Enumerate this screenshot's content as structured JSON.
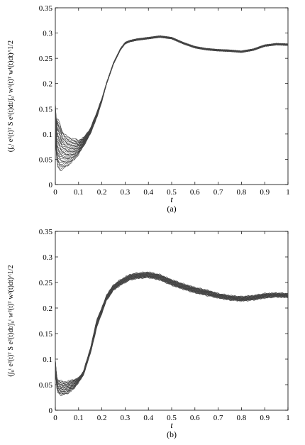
{
  "chart_data": [
    {
      "type": "line",
      "panel_label": "(a)",
      "xlabel": "t",
      "ylabel": "(∫₀ᵗ e¹(t)ᵀ S e¹(t)dt/∫₀ᵗ w¹(t)ᵀ w¹(t)dt)^1/2",
      "xlim": [
        0,
        1
      ],
      "ylim": [
        0,
        0.35
      ],
      "xticks": [
        "0",
        "0.1",
        "0.2",
        "0.3",
        "0.4",
        "0.5",
        "0.6",
        "0.7",
        "0.8",
        "0.9",
        "1"
      ],
      "yticks": [
        "0",
        "0.05",
        "0.1",
        "0.15",
        "0.2",
        "0.25",
        "0.3",
        "0.35"
      ],
      "grid": false,
      "series_count": 30,
      "x": [
        0,
        0.005,
        0.01,
        0.02,
        0.03,
        0.05,
        0.08,
        0.1,
        0.12,
        0.15,
        0.18,
        0.2,
        0.22,
        0.25,
        0.28,
        0.3,
        0.32,
        0.35,
        0.4,
        0.45,
        0.5,
        0.55,
        0.6,
        0.65,
        0.7,
        0.75,
        0.8,
        0.85,
        0.9,
        0.95,
        1.0
      ],
      "upper_envelope": [
        0.165,
        0.12,
        0.13,
        0.12,
        0.105,
        0.095,
        0.09,
        0.088,
        0.092,
        0.11,
        0.145,
        0.17,
        0.2,
        0.24,
        0.268,
        0.28,
        0.284,
        0.287,
        0.29,
        0.293,
        0.29,
        0.28,
        0.272,
        0.268,
        0.266,
        0.265,
        0.263,
        0.267,
        0.275,
        0.278,
        0.277
      ],
      "lower_envelope": [
        0.1,
        0.05,
        0.035,
        0.028,
        0.03,
        0.036,
        0.048,
        0.06,
        0.075,
        0.1,
        0.135,
        0.165,
        0.2,
        0.24,
        0.268,
        0.28,
        0.284,
        0.287,
        0.29,
        0.293,
        0.29,
        0.28,
        0.272,
        0.268,
        0.266,
        0.265,
        0.263,
        0.267,
        0.275,
        0.278,
        0.277
      ]
    },
    {
      "type": "line",
      "panel_label": "(b)",
      "xlabel": "t",
      "ylabel": "(∫₀ᵗ e²(t)ᵀ S e²(t)dt/∫₀ᵗ w²(t)ᵀ w²(t)dt)^1/2",
      "xlim": [
        0,
        1
      ],
      "ylim": [
        0,
        0.35
      ],
      "xticks": [
        "0",
        "0.1",
        "0.2",
        "0.3",
        "0.4",
        "0.5",
        "0.6",
        "0.7",
        "0.8",
        "0.9",
        "1"
      ],
      "yticks": [
        "0",
        "0.05",
        "0.1",
        "0.15",
        "0.2",
        "0.25",
        "0.3",
        "0.35"
      ],
      "grid": false,
      "series_count": 25,
      "x": [
        0,
        0.005,
        0.01,
        0.02,
        0.03,
        0.05,
        0.08,
        0.1,
        0.12,
        0.15,
        0.18,
        0.2,
        0.22,
        0.25,
        0.28,
        0.3,
        0.32,
        0.35,
        0.4,
        0.45,
        0.5,
        0.55,
        0.6,
        0.65,
        0.7,
        0.75,
        0.8,
        0.85,
        0.9,
        0.95,
        1.0
      ],
      "upper_envelope": [
        0.1,
        0.07,
        0.06,
        0.058,
        0.056,
        0.056,
        0.06,
        0.063,
        0.075,
        0.12,
        0.18,
        0.2,
        0.225,
        0.245,
        0.255,
        0.26,
        0.265,
        0.268,
        0.27,
        0.265,
        0.255,
        0.247,
        0.24,
        0.235,
        0.228,
        0.224,
        0.222,
        0.224,
        0.228,
        0.229,
        0.228
      ],
      "lower_envelope": [
        0.09,
        0.045,
        0.035,
        0.03,
        0.03,
        0.032,
        0.042,
        0.055,
        0.068,
        0.11,
        0.165,
        0.19,
        0.215,
        0.235,
        0.245,
        0.25,
        0.255,
        0.258,
        0.26,
        0.255,
        0.245,
        0.237,
        0.23,
        0.225,
        0.22,
        0.216,
        0.214,
        0.216,
        0.22,
        0.222,
        0.221
      ]
    }
  ]
}
